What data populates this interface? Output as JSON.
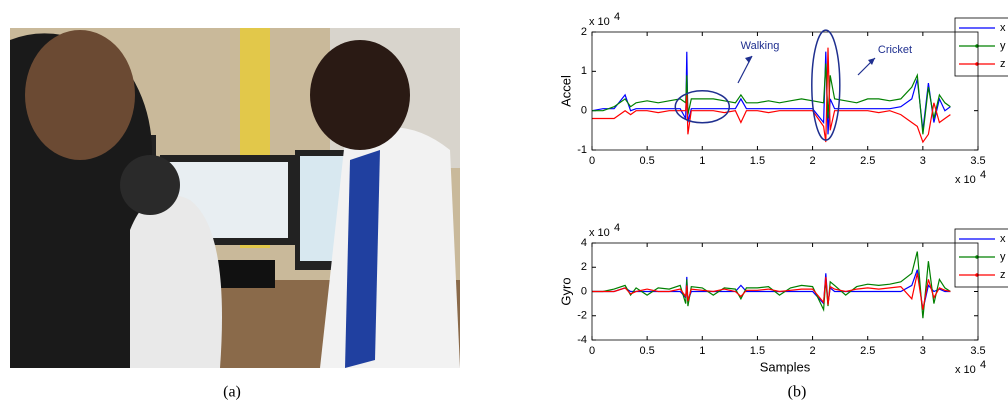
{
  "captions": [
    "(a)",
    "(b)"
  ],
  "chart_data": [
    {
      "type": "line",
      "y_label": "Accel",
      "multiplier": "x 10",
      "exponent": "4",
      "xlim": [
        0,
        3.5
      ],
      "xticks": [
        0,
        0.5,
        1,
        1.5,
        2,
        2.5,
        3,
        3.5
      ],
      "ylim": [
        -1,
        2
      ],
      "yticks": [
        -1,
        0,
        1,
        2
      ],
      "legend": "upper right",
      "annotations": [
        "Walking",
        "Cricket"
      ],
      "x": [
        0,
        0.1,
        0.2,
        0.3,
        0.35,
        0.4,
        0.5,
        0.6,
        0.7,
        0.8,
        0.85,
        0.86,
        0.87,
        0.9,
        1.0,
        1.1,
        1.2,
        1.3,
        1.35,
        1.4,
        1.5,
        1.6,
        1.7,
        1.8,
        1.9,
        2.0,
        2.1,
        2.12,
        2.14,
        2.16,
        2.2,
        2.3,
        2.4,
        2.5,
        2.6,
        2.7,
        2.8,
        2.9,
        2.95,
        3.0,
        3.05,
        3.1,
        3.15,
        3.2,
        3.25
      ],
      "series": [
        {
          "name": "x",
          "color": "#0000ff",
          "marker": false,
          "values": [
            0,
            0.05,
            0.05,
            0.4,
            0,
            0.05,
            0.05,
            0.05,
            0.05,
            0.05,
            -0.2,
            1.5,
            -0.3,
            0.05,
            0.05,
            0.05,
            0.05,
            0.05,
            0.3,
            0.05,
            0.05,
            0.05,
            0.05,
            0.05,
            0.05,
            0.05,
            -0.3,
            1.5,
            -0.6,
            0.3,
            0.05,
            0.05,
            0.05,
            0.05,
            0.05,
            0.05,
            0.1,
            0.3,
            0.8,
            -0.5,
            0.7,
            -0.3,
            0.3,
            0,
            0.1
          ]
        },
        {
          "name": "y",
          "color": "#008000",
          "marker": true,
          "values": [
            0,
            0,
            0.1,
            0.3,
            0.1,
            0.2,
            0.25,
            0.2,
            0.25,
            0.3,
            0.2,
            0.9,
            -0.1,
            0.3,
            0.3,
            0.3,
            0.25,
            0.2,
            0.4,
            0.2,
            0.2,
            0.25,
            0.2,
            0.25,
            0.3,
            0.25,
            0.2,
            1.2,
            -0.2,
            0.9,
            0.3,
            0.25,
            0.2,
            0.3,
            0.3,
            0.25,
            0.3,
            0.6,
            0.9,
            -0.6,
            0.6,
            -0.2,
            0.4,
            0.2,
            0.1
          ]
        },
        {
          "name": "z",
          "color": "#ff0000",
          "marker": true,
          "values": [
            -0.2,
            -0.2,
            -0.2,
            0,
            -0.1,
            0,
            0,
            -0.05,
            0,
            0,
            0,
            0.4,
            -0.6,
            0,
            0,
            0,
            -0.05,
            0,
            -0.3,
            0,
            0,
            -0.05,
            0,
            0,
            0,
            0,
            -0.4,
            -0.8,
            1.6,
            -0.5,
            0,
            0,
            0,
            0,
            -0.05,
            0,
            -0.1,
            -0.3,
            -0.4,
            -0.8,
            -0.6,
            0.2,
            -0.3,
            -0.2,
            -0.1
          ]
        }
      ]
    },
    {
      "type": "line",
      "y_label": "Gyro",
      "x_label": "Samples",
      "multiplier": "x 10",
      "exponent": "4",
      "xlim": [
        0,
        3.5
      ],
      "xticks": [
        0,
        0.5,
        1,
        1.5,
        2,
        2.5,
        3,
        3.5
      ],
      "ylim": [
        -4,
        4
      ],
      "yticks": [
        -4,
        -2,
        0,
        2,
        4
      ],
      "legend": "upper right",
      "x": [
        0,
        0.1,
        0.2,
        0.3,
        0.35,
        0.4,
        0.5,
        0.6,
        0.7,
        0.8,
        0.85,
        0.86,
        0.87,
        0.9,
        1.0,
        1.1,
        1.2,
        1.3,
        1.35,
        1.4,
        1.5,
        1.6,
        1.7,
        1.8,
        1.9,
        2.0,
        2.1,
        2.12,
        2.14,
        2.16,
        2.2,
        2.3,
        2.4,
        2.5,
        2.6,
        2.7,
        2.8,
        2.9,
        2.95,
        3.0,
        3.05,
        3.1,
        3.15,
        3.2,
        3.25
      ],
      "series": [
        {
          "name": "x",
          "color": "#0000ff",
          "marker": false,
          "values": [
            0,
            0,
            0,
            0.3,
            0,
            0,
            0,
            0,
            0,
            0,
            -0.5,
            1.2,
            -0.8,
            0,
            0,
            0,
            0,
            0,
            0.5,
            0,
            0,
            0,
            0,
            0,
            0,
            0,
            -1,
            1.5,
            -1,
            0.3,
            0,
            0,
            0,
            0,
            0,
            0,
            0,
            0.5,
            1.8,
            -1.5,
            0.5,
            0,
            0.2,
            0,
            0
          ]
        },
        {
          "name": "y",
          "color": "#008000",
          "marker": true,
          "values": [
            0,
            0,
            0.2,
            0.5,
            -0.3,
            0.3,
            -0.3,
            0.3,
            0.2,
            0.5,
            -1,
            1,
            -1.2,
            0.4,
            0.3,
            -0.3,
            0.3,
            0.2,
            -0.6,
            0.3,
            0.3,
            0.4,
            -0.3,
            0.3,
            0.5,
            0.4,
            -1.5,
            1,
            -1.2,
            0.8,
            0.5,
            -0.3,
            0.4,
            0.6,
            0.5,
            0.6,
            0.8,
            1.5,
            3.3,
            -2.2,
            2.5,
            -1,
            1,
            0.3,
            0
          ]
        },
        {
          "name": "z",
          "color": "#ff0000",
          "marker": true,
          "values": [
            0,
            0,
            0,
            0.3,
            -0.2,
            0,
            0.2,
            0,
            0,
            0.2,
            -0.4,
            0.5,
            -0.8,
            0.2,
            0.1,
            0,
            0.2,
            0,
            -0.4,
            0.1,
            0.1,
            0.2,
            0,
            0.1,
            0.2,
            0.2,
            -0.9,
            1.2,
            -1.1,
            0.4,
            0.2,
            0,
            0.2,
            0.3,
            0.2,
            0.3,
            0.4,
            -0.6,
            1.5,
            -1.5,
            1,
            -0.5,
            0.3,
            0.1,
            0
          ]
        }
      ]
    }
  ]
}
